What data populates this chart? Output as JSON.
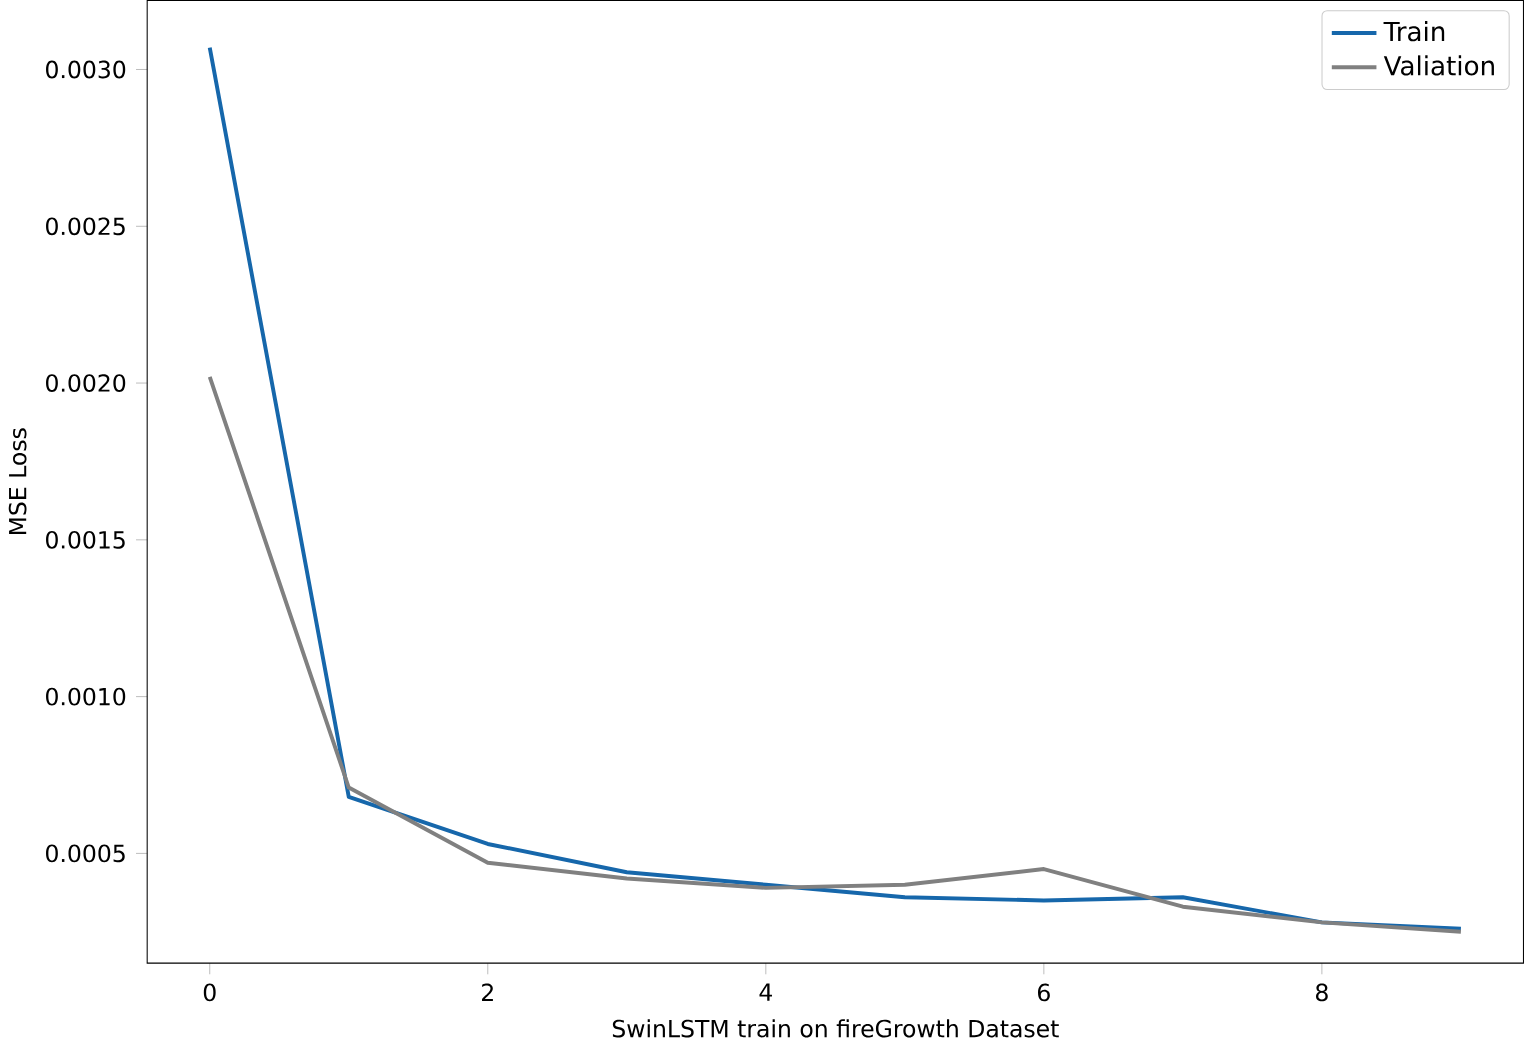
{
  "chart_data": {
    "type": "line",
    "xlabel": "SwinLSTM train on fireGrowth Dataset",
    "ylabel": "MSE Loss",
    "x": [
      0,
      1,
      2,
      3,
      4,
      5,
      6,
      7,
      8,
      9
    ],
    "series": [
      {
        "name": "Train",
        "color": "#1667ab",
        "values": [
          0.00307,
          0.00068,
          0.00053,
          0.00044,
          0.0004,
          0.00036,
          0.00035,
          0.00036,
          0.00028,
          0.00026
        ]
      },
      {
        "name": "Valiation",
        "color": "#808080",
        "values": [
          0.00202,
          0.00071,
          0.00047,
          0.00042,
          0.00039,
          0.0004,
          0.00045,
          0.00033,
          0.00028,
          0.00025
        ]
      }
    ],
    "xlim": [
      -0.45,
      9.45
    ],
    "ylim": [
      0.00015,
      0.00322
    ],
    "xticks": [
      0,
      2,
      4,
      6,
      8
    ],
    "yticks": [
      {
        "value": 0.0005,
        "label": "0.0005"
      },
      {
        "value": 0.001,
        "label": "0.0010"
      },
      {
        "value": 0.0015,
        "label": "0.0015"
      },
      {
        "value": 0.002,
        "label": "0.0020"
      },
      {
        "value": 0.0025,
        "label": "0.0025"
      },
      {
        "value": 0.003,
        "label": "0.0030"
      }
    ],
    "legend": "top right",
    "grid": false,
    "marker": "none",
    "line_style": "solid"
  }
}
